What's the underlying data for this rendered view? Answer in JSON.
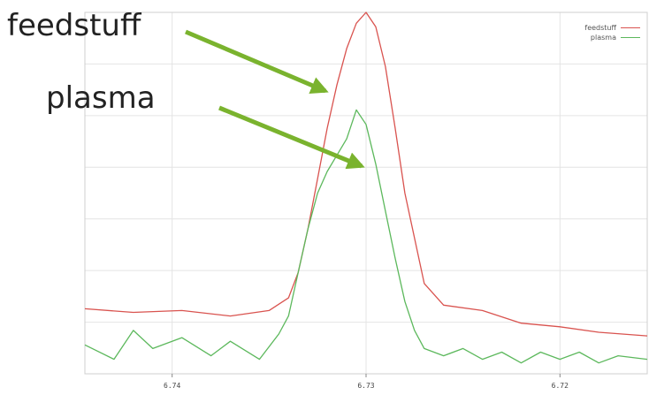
{
  "callouts": {
    "feedstuff": "feedstuff",
    "plasma": "plasma"
  },
  "chart_data": {
    "type": "line",
    "title": "",
    "xlabel": "",
    "ylabel": "",
    "x_reversed": true,
    "xlim": [
      6.7445,
      6.7155
    ],
    "ylim": [
      0,
      100
    ],
    "x_ticks": [
      6.74,
      6.73,
      6.72
    ],
    "x_tick_labels": [
      "6.74",
      "6.73",
      "6.72"
    ],
    "grid": true,
    "legend": "top-right",
    "series": [
      {
        "name": "feedstuff",
        "color": "#d9534f",
        "x": [
          6.7445,
          6.742,
          6.7395,
          6.737,
          6.735,
          6.734,
          6.7335,
          6.733,
          6.7325,
          6.732,
          6.7315,
          6.731,
          6.7305,
          6.73,
          6.7295,
          6.729,
          6.7285,
          6.728,
          6.727,
          6.726,
          6.724,
          6.722,
          6.72,
          6.718,
          6.7155
        ],
        "y": [
          18.0,
          17.0,
          17.5,
          16.0,
          17.5,
          21.0,
          28.0,
          40.0,
          54.0,
          68.0,
          80.0,
          90.0,
          97.0,
          100.0,
          96.0,
          85.0,
          68.0,
          50.0,
          25.0,
          19.0,
          17.5,
          14.0,
          13.0,
          11.5,
          10.5
        ]
      },
      {
        "name": "plasma",
        "color": "#5cb85c",
        "x": [
          6.7445,
          6.743,
          6.742,
          6.741,
          6.7395,
          6.738,
          6.737,
          6.7355,
          6.7345,
          6.734,
          6.7335,
          6.733,
          6.7325,
          6.732,
          6.731,
          6.7305,
          6.73,
          6.7295,
          6.729,
          6.7285,
          6.728,
          6.7275,
          6.727,
          6.726,
          6.725,
          6.724,
          6.723,
          6.722,
          6.721,
          6.72,
          6.719,
          6.718,
          6.717,
          6.7155
        ],
        "y": [
          8.0,
          4.0,
          12.0,
          7.0,
          10.0,
          5.0,
          9.0,
          4.0,
          11.0,
          16.0,
          28.0,
          40.0,
          50.0,
          56.0,
          65.0,
          73.0,
          69.0,
          58.0,
          45.0,
          32.0,
          20.0,
          12.0,
          7.0,
          5.0,
          7.0,
          4.0,
          6.0,
          3.0,
          6.0,
          4.0,
          6.0,
          3.0,
          5.0,
          4.0
        ]
      }
    ]
  },
  "colors": {
    "arrow": "#7ab32e",
    "grid": "#e4e4e4",
    "frame": "#cfcfcf"
  }
}
